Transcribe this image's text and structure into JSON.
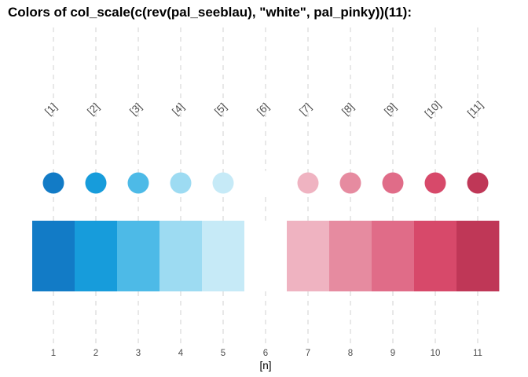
{
  "chart_data": {
    "type": "color-swatch",
    "title": "Colors of col_scale(c(rev(pal_seeblau), \"white\", pal_pinky))(11):",
    "xlabel": "[n]",
    "ylabel": "",
    "grid": true,
    "x": [
      1,
      2,
      3,
      4,
      5,
      6,
      7,
      8,
      9,
      10,
      11
    ],
    "xlim": [
      0.5,
      11.5
    ],
    "tick_labels": [
      "1",
      "2",
      "3",
      "4",
      "5",
      "6",
      "7",
      "8",
      "9",
      "10",
      "11"
    ],
    "index_labels": [
      "[1]",
      "[2]",
      "[3]",
      "[4]",
      "[5]",
      "[6]",
      "[7]",
      "[8]",
      "[9]",
      "[10]",
      "[11]"
    ],
    "colors": [
      "#127BC6",
      "#179CDB",
      "#4DBAE7",
      "#9DDBF2",
      "#C6EAF7",
      "#FFFFFF",
      "#EFB3C1",
      "#E68BA0",
      "#E06C88",
      "#D7496A",
      "#BF3757"
    ]
  }
}
